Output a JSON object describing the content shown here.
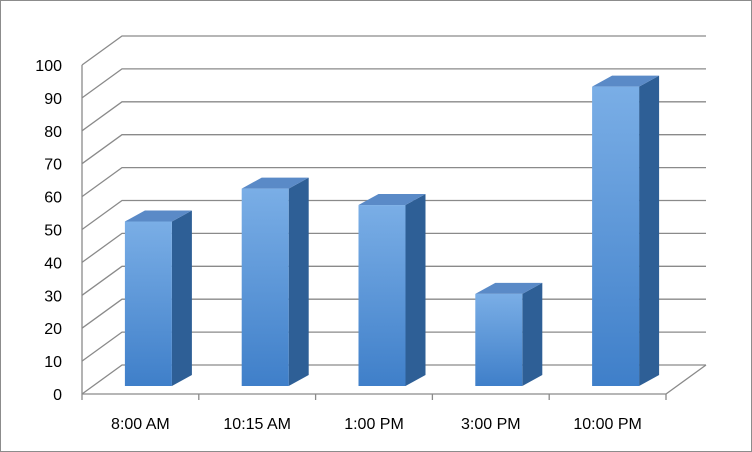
{
  "chart_data": {
    "type": "bar",
    "style": "3d-column",
    "categories": [
      "8:00 AM",
      "10:15 AM",
      "1:00 PM",
      "3:00 PM",
      "10:00 PM"
    ],
    "values": [
      50,
      60,
      55,
      28,
      91
    ],
    "title": "",
    "xlabel": "",
    "ylabel": "",
    "ylim": [
      0,
      100
    ],
    "yticks": [
      0,
      10,
      20,
      30,
      40,
      50,
      60,
      70,
      80,
      90,
      100
    ],
    "grid": true,
    "legend": "none",
    "colors": {
      "bar_front_light": "#7aaee6",
      "bar_front_dark": "#3f7fc9",
      "bar_side": "#2e5f96",
      "bar_top": "#5a8ac7",
      "gridline": "#8a8a8a"
    }
  }
}
